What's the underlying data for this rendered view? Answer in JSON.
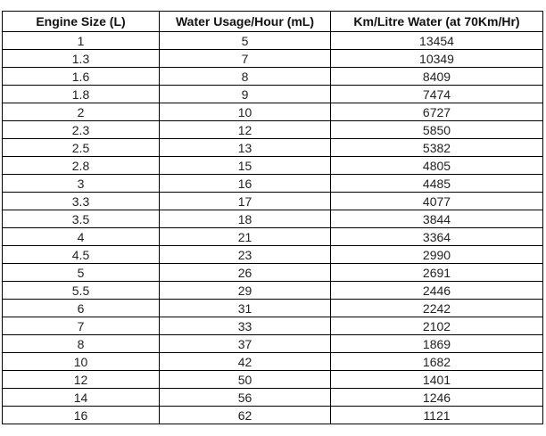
{
  "table": {
    "headers": [
      "Engine Size (L)",
      "Water Usage/Hour (mL)",
      "Km/Litre Water (at 70Km/Hr)"
    ],
    "rows": [
      [
        "1",
        "5",
        "13454"
      ],
      [
        "1.3",
        "7",
        "10349"
      ],
      [
        "1.6",
        "8",
        "8409"
      ],
      [
        "1.8",
        "9",
        "7474"
      ],
      [
        "2",
        "10",
        "6727"
      ],
      [
        "2.3",
        "12",
        "5850"
      ],
      [
        "2.5",
        "13",
        "5382"
      ],
      [
        "2.8",
        "15",
        "4805"
      ],
      [
        "3",
        "16",
        "4485"
      ],
      [
        "3.3",
        "17",
        "4077"
      ],
      [
        "3.5",
        "18",
        "3844"
      ],
      [
        "4",
        "21",
        "3364"
      ],
      [
        "4.5",
        "23",
        "2990"
      ],
      [
        "5",
        "26",
        "2691"
      ],
      [
        "5.5",
        "29",
        "2446"
      ],
      [
        "6",
        "31",
        "2242"
      ],
      [
        "7",
        "33",
        "2102"
      ],
      [
        "8",
        "37",
        "1869"
      ],
      [
        "10",
        "42",
        "1682"
      ],
      [
        "12",
        "50",
        "1401"
      ],
      [
        "14",
        "56",
        "1246"
      ],
      [
        "16",
        "62",
        "1121"
      ]
    ]
  }
}
